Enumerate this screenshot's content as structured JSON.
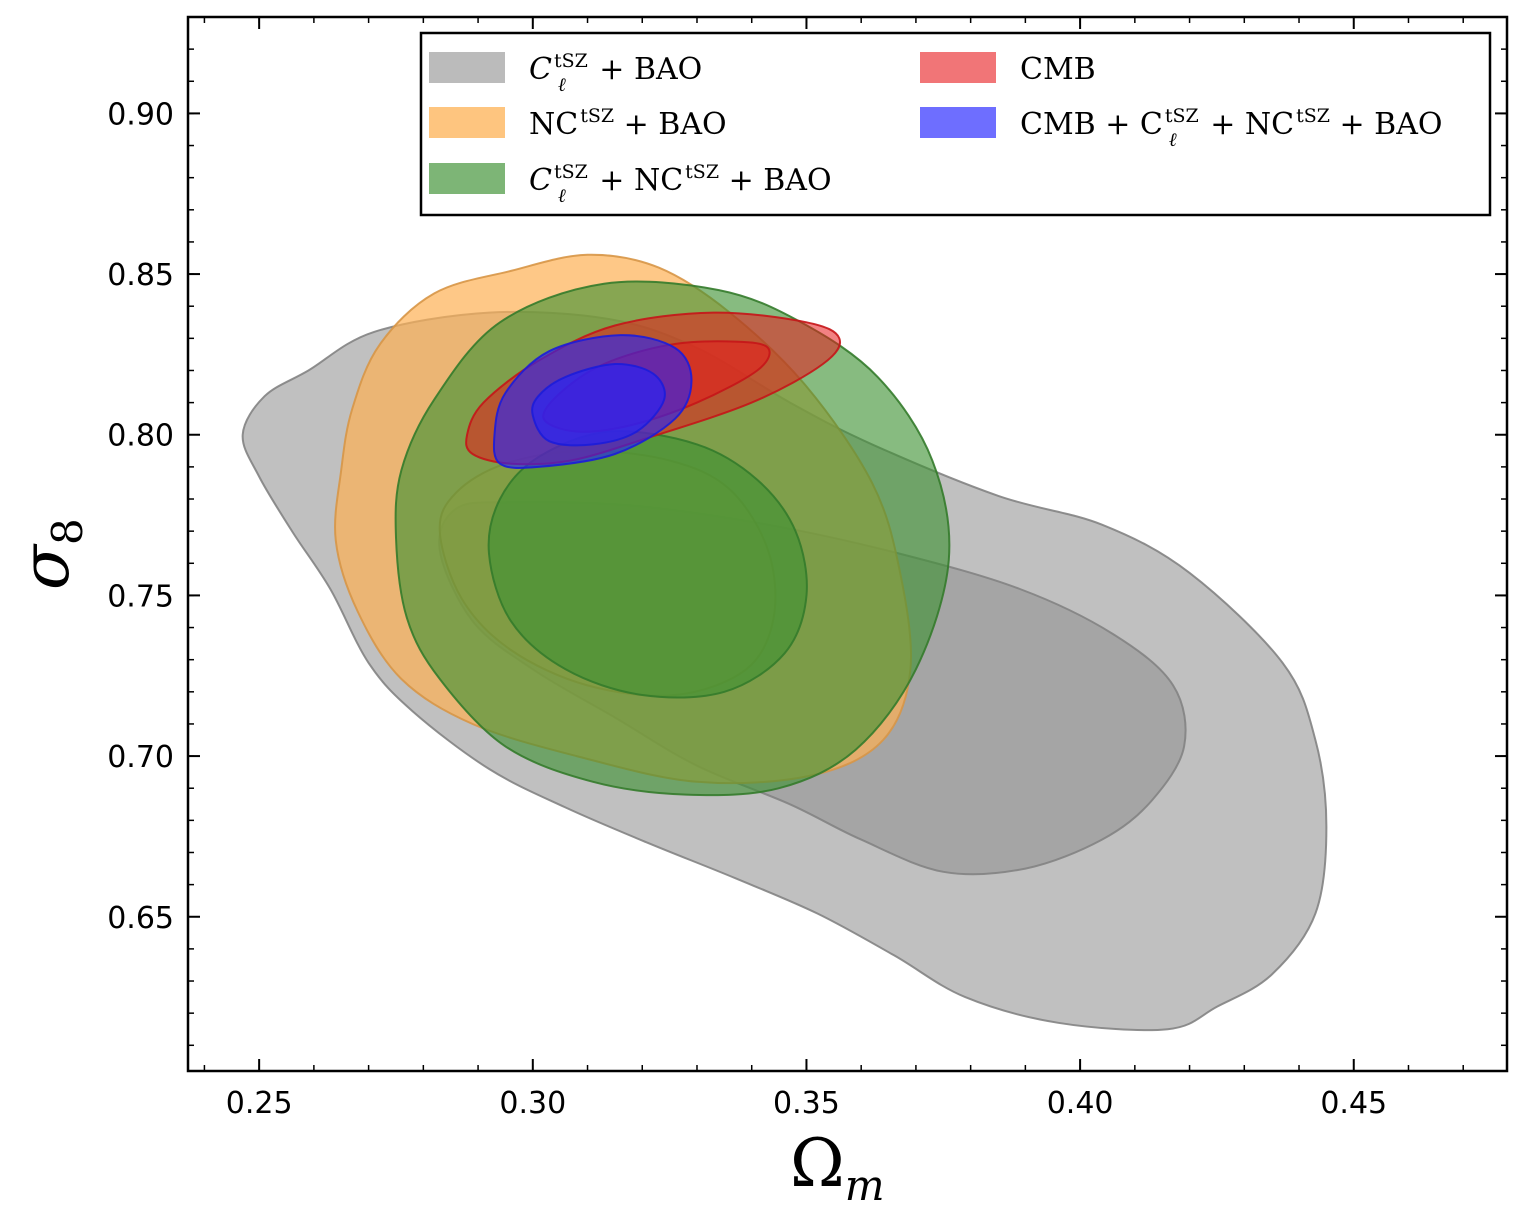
{
  "chart_data": {
    "type": "contour",
    "title": "",
    "xlabel": "Ω",
    "xlabel_sub": "m",
    "ylabel": "σ",
    "ylabel_sub": "8",
    "xlim": [
      0.237,
      0.478
    ],
    "ylim": [
      0.602,
      0.93
    ],
    "xticks": [
      0.25,
      0.3,
      0.35,
      0.4,
      0.45
    ],
    "xtick_labels": [
      "0.25",
      "0.30",
      "0.35",
      "0.40",
      "0.45"
    ],
    "yticks": [
      0.65,
      0.7,
      0.75,
      0.8,
      0.85,
      0.9
    ],
    "ytick_labels": [
      "0.65",
      "0.70",
      "0.75",
      "0.80",
      "0.85",
      "0.90"
    ],
    "legend_position": "top",
    "series": [
      {
        "name": "Cl_tSZ_BAO",
        "legend": {
          "main": "C",
          "sub": "ℓ",
          "sup": "tSZ",
          "rest": " + BAO"
        },
        "color": "#9a9a9a",
        "contours": [
          {
            "level": "95%",
            "opacity": 0.62,
            "points": [
              [
                0.247,
                0.8
              ],
              [
                0.25,
                0.787
              ],
              [
                0.256,
                0.77
              ],
              [
                0.263,
                0.752
              ],
              [
                0.27,
                0.729
              ],
              [
                0.278,
                0.714
              ],
              [
                0.292,
                0.696
              ],
              [
                0.306,
                0.684
              ],
              [
                0.321,
                0.673
              ],
              [
                0.337,
                0.662
              ],
              [
                0.352,
                0.651
              ],
              [
                0.366,
                0.638
              ],
              [
                0.379,
                0.625
              ],
              [
                0.396,
                0.617
              ],
              [
                0.416,
                0.615
              ],
              [
                0.425,
                0.622
              ],
              [
                0.435,
                0.632
              ],
              [
                0.443,
                0.651
              ],
              [
                0.445,
                0.678
              ],
              [
                0.443,
                0.705
              ],
              [
                0.437,
                0.729
              ],
              [
                0.42,
                0.757
              ],
              [
                0.404,
                0.772
              ],
              [
                0.385,
                0.781
              ],
              [
                0.362,
                0.797
              ],
              [
                0.347,
                0.81
              ],
              [
                0.33,
                0.827
              ],
              [
                0.314,
                0.836
              ],
              [
                0.292,
                0.838
              ],
              [
                0.271,
                0.832
              ],
              [
                0.259,
                0.82
              ],
              [
                0.251,
                0.812
              ]
            ]
          },
          {
            "level": "68%",
            "opacity": 0.7,
            "points": [
              [
                0.283,
                0.764
              ],
              [
                0.289,
                0.742
              ],
              [
                0.3,
                0.727
              ],
              [
                0.315,
                0.712
              ],
              [
                0.33,
                0.697
              ],
              [
                0.347,
                0.685
              ],
              [
                0.36,
                0.674
              ],
              [
                0.375,
                0.664
              ],
              [
                0.39,
                0.665
              ],
              [
                0.404,
                0.674
              ],
              [
                0.413,
                0.686
              ],
              [
                0.419,
                0.703
              ],
              [
                0.417,
                0.722
              ],
              [
                0.406,
                0.738
              ],
              [
                0.389,
                0.752
              ],
              [
                0.367,
                0.763
              ],
              [
                0.343,
                0.772
              ],
              [
                0.318,
                0.778
              ],
              [
                0.296,
                0.779
              ],
              [
                0.286,
                0.777
              ]
            ]
          }
        ]
      },
      {
        "name": "NC_tSZ_BAO",
        "legend": {
          "main": "NC",
          "sup": "tSZ",
          "rest": " + BAO"
        },
        "color": "#fdb154",
        "contours": [
          {
            "level": "95%",
            "opacity": 0.7,
            "points": [
              [
                0.265,
                0.789
              ],
              [
                0.264,
                0.767
              ],
              [
                0.268,
                0.745
              ],
              [
                0.276,
                0.724
              ],
              [
                0.289,
                0.71
              ],
              [
                0.308,
                0.7
              ],
              [
                0.33,
                0.692
              ],
              [
                0.351,
                0.694
              ],
              [
                0.364,
                0.705
              ],
              [
                0.369,
                0.727
              ],
              [
                0.367,
                0.758
              ],
              [
                0.362,
                0.785
              ],
              [
                0.35,
                0.815
              ],
              [
                0.336,
                0.838
              ],
              [
                0.323,
                0.852
              ],
              [
                0.31,
                0.856
              ],
              [
                0.296,
                0.851
              ],
              [
                0.282,
                0.844
              ],
              [
                0.272,
                0.828
              ],
              [
                0.267,
                0.808
              ]
            ]
          },
          {
            "level": "68%",
            "opacity": 0.45,
            "points": [
              [
                0.283,
                0.77
              ],
              [
                0.287,
                0.749
              ],
              [
                0.296,
                0.733
              ],
              [
                0.31,
                0.722
              ],
              [
                0.326,
                0.719
              ],
              [
                0.339,
                0.727
              ],
              [
                0.344,
                0.743
              ],
              [
                0.343,
                0.764
              ],
              [
                0.336,
                0.783
              ],
              [
                0.325,
                0.792
              ],
              [
                0.309,
                0.795
              ],
              [
                0.295,
                0.791
              ],
              [
                0.286,
                0.782
              ]
            ]
          }
        ]
      },
      {
        "name": "Cl_NC_tSZ_BAO",
        "legend": {
          "main": "C",
          "sub": "ℓ",
          "sup": "tSZ",
          "rest": " + NC",
          "sup2": "tSZ",
          "rest2": " + BAO"
        },
        "color": "#3d9132",
        "contours": [
          {
            "level": "95%",
            "opacity": 0.62,
            "points": [
              [
                0.275,
                0.768
              ],
              [
                0.277,
                0.743
              ],
              [
                0.283,
                0.724
              ],
              [
                0.295,
                0.703
              ],
              [
                0.311,
                0.692
              ],
              [
                0.328,
                0.688
              ],
              [
                0.345,
                0.69
              ],
              [
                0.359,
                0.702
              ],
              [
                0.37,
                0.727
              ],
              [
                0.376,
                0.761
              ],
              [
                0.373,
                0.792
              ],
              [
                0.363,
                0.818
              ],
              [
                0.349,
                0.835
              ],
              [
                0.334,
                0.845
              ],
              [
                0.313,
                0.847
              ],
              [
                0.294,
                0.835
              ],
              [
                0.282,
                0.811
              ],
              [
                0.276,
                0.789
              ]
            ]
          },
          {
            "level": "68%",
            "opacity": 0.62,
            "points": [
              [
                0.292,
                0.763
              ],
              [
                0.296,
                0.742
              ],
              [
                0.306,
                0.727
              ],
              [
                0.32,
                0.719
              ],
              [
                0.335,
                0.72
              ],
              [
                0.346,
                0.732
              ],
              [
                0.35,
                0.75
              ],
              [
                0.348,
                0.77
              ],
              [
                0.341,
                0.786
              ],
              [
                0.33,
                0.797
              ],
              [
                0.314,
                0.801
              ],
              [
                0.301,
                0.793
              ],
              [
                0.294,
                0.78
              ]
            ]
          }
        ]
      },
      {
        "name": "CMB",
        "legend": {
          "main": "CMB",
          "rest": ""
        },
        "color": "#e8191c",
        "contours": [
          {
            "level": "95%",
            "opacity": 0.55,
            "points": [
              [
                0.288,
                0.8
              ],
              [
                0.289,
                0.794
              ],
              [
                0.296,
                0.791
              ],
              [
                0.307,
                0.792
              ],
              [
                0.321,
                0.799
              ],
              [
                0.34,
                0.81
              ],
              [
                0.353,
                0.822
              ],
              [
                0.356,
                0.83
              ],
              [
                0.35,
                0.835
              ],
              [
                0.333,
                0.838
              ],
              [
                0.315,
                0.834
              ],
              [
                0.301,
                0.823
              ],
              [
                0.291,
                0.81
              ]
            ]
          },
          {
            "level": "68%",
            "opacity": 0.55,
            "points": [
              [
                0.302,
                0.805
              ],
              [
                0.308,
                0.801
              ],
              [
                0.318,
                0.803
              ],
              [
                0.33,
                0.81
              ],
              [
                0.341,
                0.82
              ],
              [
                0.343,
                0.827
              ],
              [
                0.337,
                0.829
              ],
              [
                0.325,
                0.828
              ],
              [
                0.313,
                0.822
              ],
              [
                0.305,
                0.813
              ]
            ]
          }
        ]
      },
      {
        "name": "CMB_Cl_NC_tSZ_BAO",
        "legend": {
          "main": "CMB + C",
          "sub": "ℓ",
          "sup": "tSZ",
          "rest": " + NC",
          "sup2": "tSZ",
          "rest2": " + BAO"
        },
        "color": "#2121ff",
        "contours": [
          {
            "level": "95%",
            "opacity": 0.6,
            "points": [
              [
                0.293,
                0.8
              ],
              [
                0.294,
                0.791
              ],
              [
                0.301,
                0.79
              ],
              [
                0.315,
                0.794
              ],
              [
                0.326,
                0.805
              ],
              [
                0.329,
                0.817
              ],
              [
                0.326,
                0.827
              ],
              [
                0.316,
                0.831
              ],
              [
                0.303,
                0.826
              ],
              [
                0.295,
                0.813
              ]
            ]
          },
          {
            "level": "68%",
            "opacity": 0.6,
            "points": [
              [
                0.3,
                0.806
              ],
              [
                0.303,
                0.798
              ],
              [
                0.311,
                0.797
              ],
              [
                0.319,
                0.801
              ],
              [
                0.324,
                0.811
              ],
              [
                0.322,
                0.819
              ],
              [
                0.315,
                0.822
              ],
              [
                0.306,
                0.818
              ],
              [
                0.301,
                0.812
              ]
            ]
          }
        ]
      }
    ]
  }
}
